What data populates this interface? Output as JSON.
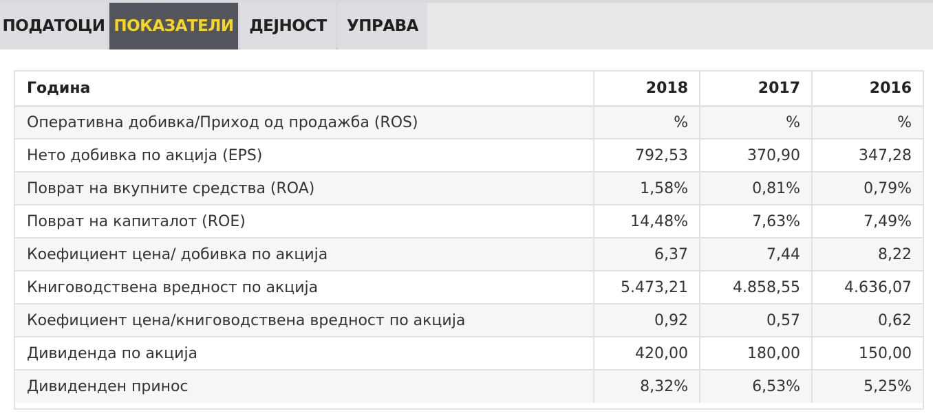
{
  "tabs": [
    {
      "label": "ПОДАТОЦИ",
      "active": false
    },
    {
      "label": "ПОКАЗАТЕЛИ",
      "active": true
    },
    {
      "label": "ДЕЈНОСТ",
      "active": false
    },
    {
      "label": "УПРАВА",
      "active": false
    }
  ],
  "colors": {
    "active_tab_bg": "#53555d",
    "active_tab_text": "#f5d525",
    "tab_bg": "#dedee2"
  },
  "table": {
    "headers": [
      "Година",
      "2018",
      "2017",
      "2016"
    ],
    "rows": [
      [
        "Оперативна добивка/Приход од продажба (ROS)",
        "%",
        "%",
        "%"
      ],
      [
        "Нето добивка по акција (EPS)",
        "792,53",
        "370,90",
        "347,28"
      ],
      [
        "Поврат на вкупните средства (ROA)",
        "1,58%",
        "0,81%",
        "0,79%"
      ],
      [
        "Поврат на капиталот (ROE)",
        "14,48%",
        "7,63%",
        "7,49%"
      ],
      [
        "Коефициент цена/ добивка по акција",
        "6,37",
        "7,44",
        "8,22"
      ],
      [
        "Книговодствена вредност по акција",
        "5.473,21",
        "4.858,55",
        "4.636,07"
      ],
      [
        "Коефициент цена/книговодствена вредност по акција",
        "0,92",
        "0,57",
        "0,62"
      ],
      [
        "Дивиденда по акција",
        "420,00",
        "180,00",
        "150,00"
      ],
      [
        "Дивиденден принос",
        "8,32%",
        "6,53%",
        "5,25%"
      ]
    ]
  }
}
